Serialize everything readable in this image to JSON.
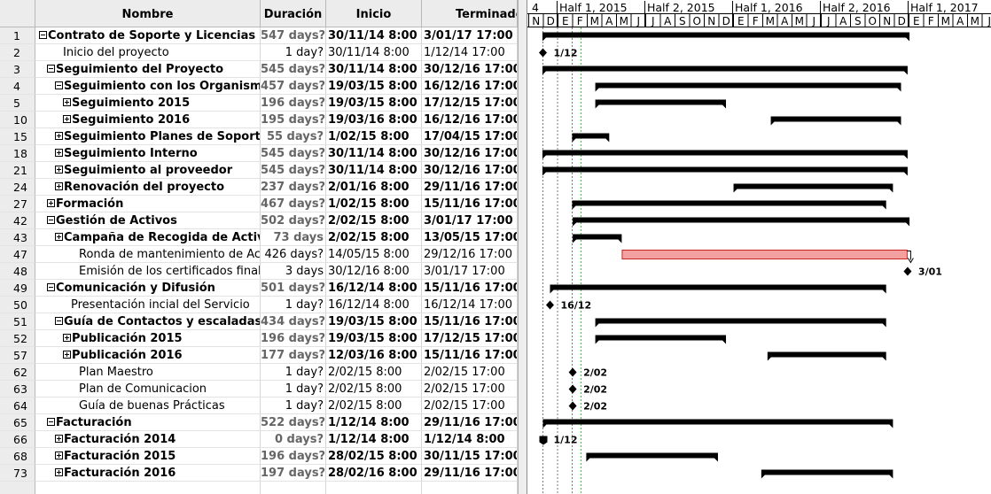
{
  "columns": {
    "id": "",
    "name": "Nombre",
    "duration": "Duración",
    "start": "Inicio",
    "end": "Terminado"
  },
  "tasks": [
    {
      "id": "1",
      "name": "Contrato de Soporte y Licencias O",
      "duration": "547 days?",
      "start": "30/11/14 8:00",
      "end": "3/01/17 17:00",
      "bold": true,
      "indent": 0,
      "toggle": "minus"
    },
    {
      "id": "2",
      "name": "Inicio del proyecto",
      "duration": "1 day?",
      "start": "30/11/14 8:00",
      "end": "1/12/14 17:00",
      "bold": false,
      "indent": 1,
      "toggle": "none"
    },
    {
      "id": "3",
      "name": "Seguimiento del Proyecto",
      "duration": "545 days?",
      "start": "30/11/14 8:00",
      "end": "30/12/16 17:00",
      "bold": true,
      "indent": 1,
      "toggle": "minus"
    },
    {
      "id": "4",
      "name": "Seguimiento con los Organismos",
      "duration": "457 days?",
      "start": "19/03/15 8:00",
      "end": "16/12/16 17:00",
      "bold": true,
      "indent": 2,
      "toggle": "minus"
    },
    {
      "id": "5",
      "name": "Seguimiento 2015",
      "duration": "196 days?",
      "start": "19/03/15 8:00",
      "end": "17/12/15 17:00",
      "bold": true,
      "indent": 3,
      "toggle": "plus"
    },
    {
      "id": "10",
      "name": "Seguimiento 2016",
      "duration": "195 days?",
      "start": "19/03/16 8:00",
      "end": "16/12/16 17:00",
      "bold": true,
      "indent": 3,
      "toggle": "plus"
    },
    {
      "id": "15",
      "name": "Seguimiento Planes de Soporte",
      "duration": "55 days?",
      "start": "1/02/15 8:00",
      "end": "17/04/15 17:00",
      "bold": true,
      "indent": 2,
      "toggle": "plus"
    },
    {
      "id": "18",
      "name": "Seguimiento Interno",
      "duration": "545 days?",
      "start": "30/11/14 8:00",
      "end": "30/12/16 17:00",
      "bold": true,
      "indent": 2,
      "toggle": "plus"
    },
    {
      "id": "21",
      "name": "Seguimiento al proveedor",
      "duration": "545 days?",
      "start": "30/11/14 8:00",
      "end": "30/12/16 17:00",
      "bold": true,
      "indent": 2,
      "toggle": "plus"
    },
    {
      "id": "24",
      "name": "Renovación del proyecto",
      "duration": "237 days?",
      "start": "2/01/16 8:00",
      "end": "29/11/16 17:00",
      "bold": true,
      "indent": 2,
      "toggle": "plus"
    },
    {
      "id": "27",
      "name": "Formación",
      "duration": "467 days?",
      "start": "1/02/15 8:00",
      "end": "15/11/16 17:00",
      "bold": true,
      "indent": 1,
      "toggle": "plus"
    },
    {
      "id": "42",
      "name": "Gestión de Activos",
      "duration": "502 days?",
      "start": "2/02/15 8:00",
      "end": "3/01/17 17:00",
      "bold": true,
      "indent": 1,
      "toggle": "minus"
    },
    {
      "id": "43",
      "name": "Campaña de Recogida de Activos",
      "duration": "73 days",
      "start": "2/02/15 8:00",
      "end": "13/05/15 17:00",
      "bold": true,
      "indent": 2,
      "toggle": "plus"
    },
    {
      "id": "47",
      "name": "Ronda de mantenimiento de Activos",
      "duration": "426 days?",
      "start": "14/05/15 8:00",
      "end": "29/12/16 17:00",
      "bold": false,
      "indent": 3,
      "toggle": "none"
    },
    {
      "id": "48",
      "name": "Emisión de los certificados finales",
      "duration": "3 days",
      "start": "30/12/16 8:00",
      "end": "3/01/17 17:00",
      "bold": false,
      "indent": 3,
      "toggle": "none"
    },
    {
      "id": "49",
      "name": "Comunicación y Difusión",
      "duration": "501 days?",
      "start": "16/12/14 8:00",
      "end": "15/11/16 17:00",
      "bold": true,
      "indent": 1,
      "toggle": "minus"
    },
    {
      "id": "50",
      "name": "Presentación incial del Servicio",
      "duration": "1 day?",
      "start": "16/12/14 8:00",
      "end": "16/12/14 17:00",
      "bold": false,
      "indent": 2,
      "toggle": "none"
    },
    {
      "id": "51",
      "name": "Guía de Contactos y escaladas",
      "duration": "434 days?",
      "start": "19/03/15 8:00",
      "end": "15/11/16 17:00",
      "bold": true,
      "indent": 2,
      "toggle": "minus"
    },
    {
      "id": "52",
      "name": "Publicación 2015",
      "duration": "196 days?",
      "start": "19/03/15 8:00",
      "end": "17/12/15 17:00",
      "bold": true,
      "indent": 3,
      "toggle": "plus"
    },
    {
      "id": "57",
      "name": "Publicación 2016",
      "duration": "177 days?",
      "start": "12/03/16 8:00",
      "end": "15/11/16 17:00",
      "bold": true,
      "indent": 3,
      "toggle": "plus"
    },
    {
      "id": "62",
      "name": "Plan Maestro",
      "duration": "1 day?",
      "start": "2/02/15 8:00",
      "end": "2/02/15 17:00",
      "bold": false,
      "indent": 3,
      "toggle": "none"
    },
    {
      "id": "63",
      "name": "Plan de Comunicacion",
      "duration": "1 day?",
      "start": "2/02/15 8:00",
      "end": "2/02/15 17:00",
      "bold": false,
      "indent": 3,
      "toggle": "none"
    },
    {
      "id": "64",
      "name": "Guía de buenas Prácticas",
      "duration": "1 day?",
      "start": "2/02/15 8:00",
      "end": "2/02/15 17:00",
      "bold": false,
      "indent": 3,
      "toggle": "none"
    },
    {
      "id": "65",
      "name": "Facturación",
      "duration": "522 days?",
      "start": "1/12/14 8:00",
      "end": "29/11/16 17:00",
      "bold": true,
      "indent": 1,
      "toggle": "minus"
    },
    {
      "id": "66",
      "name": "Facturación 2014",
      "duration": "0 days?",
      "start": "1/12/14 8:00",
      "end": "1/12/14 8:00",
      "bold": true,
      "indent": 2,
      "toggle": "plus"
    },
    {
      "id": "68",
      "name": "Facturación 2015",
      "duration": "196 days?",
      "start": "28/02/15 8:00",
      "end": "30/11/15 17:00",
      "bold": true,
      "indent": 2,
      "toggle": "plus"
    },
    {
      "id": "73",
      "name": "Facturación 2016",
      "duration": "197 days?",
      "start": "28/02/16 8:00",
      "end": "29/11/16 17:00",
      "bold": true,
      "indent": 2,
      "toggle": "plus"
    }
  ],
  "gantt": {
    "half_headers": [
      "4",
      "Half 1, 2015",
      "Half 2, 2015",
      "Half 1, 2016",
      "Half 2, 2016",
      "Half 1, 2017"
    ],
    "months": [
      "N",
      "D",
      "E",
      "F",
      "M",
      "A",
      "M",
      "J",
      "J",
      "A",
      "S",
      "O",
      "N",
      "D",
      "E",
      "F",
      "M",
      "A",
      "M",
      "J",
      "J",
      "A",
      "S",
      "O",
      "N",
      "D",
      "E",
      "F",
      "M",
      "A",
      "M",
      "J"
    ],
    "bars": [
      {
        "row": 0,
        "type": "summary",
        "start": "2014-11-30",
        "end": "2017-01-03"
      },
      {
        "row": 1,
        "type": "milestone",
        "start": "2014-12-01",
        "label": "1/12"
      },
      {
        "row": 2,
        "type": "summary",
        "start": "2014-11-30",
        "end": "2016-12-30"
      },
      {
        "row": 3,
        "type": "summary",
        "start": "2015-03-19",
        "end": "2016-12-16"
      },
      {
        "row": 4,
        "type": "summary",
        "start": "2015-03-19",
        "end": "2015-12-17"
      },
      {
        "row": 5,
        "type": "summary",
        "start": "2016-03-19",
        "end": "2016-12-16"
      },
      {
        "row": 6,
        "type": "summary",
        "start": "2015-02-01",
        "end": "2015-04-17"
      },
      {
        "row": 7,
        "type": "summary",
        "start": "2014-11-30",
        "end": "2016-12-30"
      },
      {
        "row": 8,
        "type": "summary",
        "start": "2014-11-30",
        "end": "2016-12-30"
      },
      {
        "row": 9,
        "type": "summary",
        "start": "2016-01-02",
        "end": "2016-11-29"
      },
      {
        "row": 10,
        "type": "summary",
        "start": "2015-02-01",
        "end": "2016-11-15"
      },
      {
        "row": 11,
        "type": "summary",
        "start": "2015-02-02",
        "end": "2017-01-03"
      },
      {
        "row": 12,
        "type": "summary",
        "start": "2015-02-02",
        "end": "2015-05-13"
      },
      {
        "row": 13,
        "type": "task",
        "start": "2015-05-14",
        "end": "2016-12-29"
      },
      {
        "row": 14,
        "type": "milestone",
        "start": "2016-12-30",
        "label": "3/01"
      },
      {
        "row": 15,
        "type": "summary",
        "start": "2014-12-16",
        "end": "2016-11-15"
      },
      {
        "row": 16,
        "type": "milestone",
        "start": "2014-12-16",
        "label": "16/12"
      },
      {
        "row": 17,
        "type": "summary",
        "start": "2015-03-19",
        "end": "2016-11-15"
      },
      {
        "row": 18,
        "type": "summary",
        "start": "2015-03-19",
        "end": "2015-12-17"
      },
      {
        "row": 19,
        "type": "summary",
        "start": "2016-03-12",
        "end": "2016-11-15"
      },
      {
        "row": 20,
        "type": "milestone",
        "start": "2015-02-02",
        "label": "2/02"
      },
      {
        "row": 21,
        "type": "milestone",
        "start": "2015-02-02",
        "label": "2/02"
      },
      {
        "row": 22,
        "type": "milestone",
        "start": "2015-02-02",
        "label": "2/02"
      },
      {
        "row": 23,
        "type": "summary",
        "start": "2014-12-01",
        "end": "2016-11-29"
      },
      {
        "row": 24,
        "type": "zero",
        "start": "2014-12-01",
        "label": "1/12"
      },
      {
        "row": 25,
        "type": "summary",
        "start": "2015-02-28",
        "end": "2015-11-30"
      },
      {
        "row": 26,
        "type": "summary",
        "start": "2016-02-28",
        "end": "2016-11-29"
      }
    ],
    "colors": {
      "summary": "#000000",
      "task_fill": "#f2a0a0",
      "task_border": "#cc2222",
      "today_line": "#33cc33"
    }
  }
}
